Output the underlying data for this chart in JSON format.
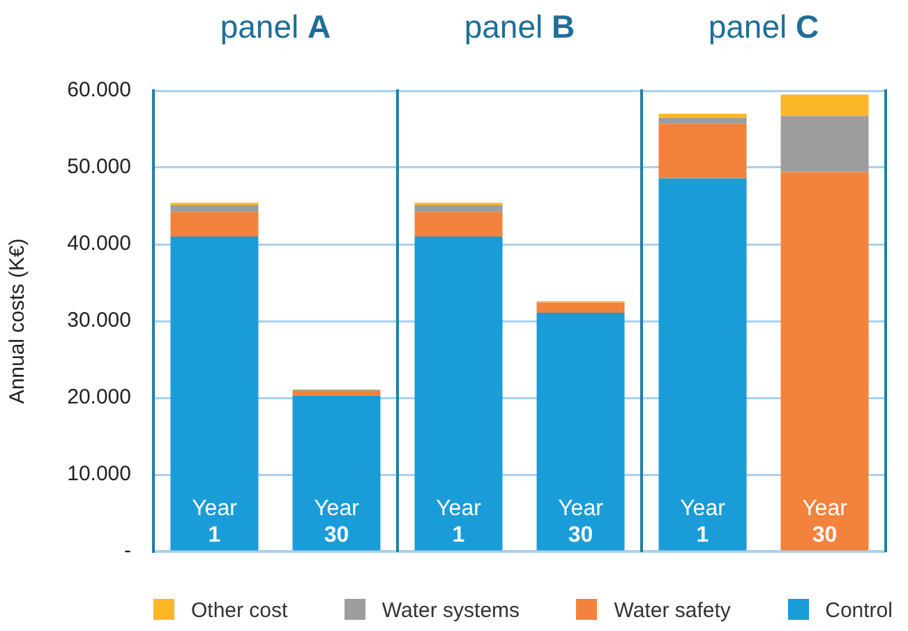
{
  "chart_data": {
    "type": "bar",
    "ylabel": "Annual costs (K€)",
    "annotations": [
      "panel A",
      "panel B",
      "panel C"
    ],
    "categories": [
      "Year 1",
      "Year 30",
      "Year 1",
      "Year 30",
      "Year 1",
      "Year 30"
    ],
    "stacked": true,
    "legend": "bottom",
    "grid": "y",
    "ylim": [
      0,
      60000
    ],
    "yticks": [
      {
        "value": 0,
        "label": "-"
      },
      {
        "value": 10000,
        "label": "10.000"
      },
      {
        "value": 20000,
        "label": "20.000"
      },
      {
        "value": 30000,
        "label": "30.000"
      },
      {
        "value": 40000,
        "label": "40.000"
      },
      {
        "value": 50000,
        "label": "50.000"
      },
      {
        "value": 60000,
        "label": "60.000"
      }
    ],
    "series": [
      {
        "name": "Control",
        "color": "#1a9cd8",
        "values": [
          41000,
          20300,
          41000,
          31100,
          48600,
          0
        ]
      },
      {
        "name": "Water safety",
        "color": "#f3823c",
        "values": [
          3200,
          600,
          3200,
          1300,
          7100,
          49400
        ]
      },
      {
        "name": "Water systems",
        "color": "#9d9d9d",
        "values": [
          900,
          100,
          900,
          0,
          800,
          7300
        ]
      },
      {
        "name": "Other cost",
        "color": "#fbb726",
        "values": [
          300,
          100,
          300,
          200,
          500,
          2800
        ]
      }
    ]
  }
}
